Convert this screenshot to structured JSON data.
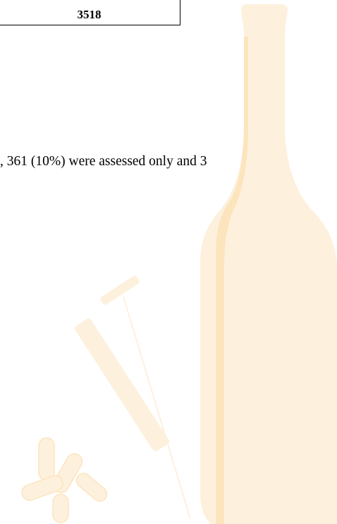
{
  "table": {
    "rows": [
      [
        "3518"
      ]
    ]
  },
  "paragraph": {
    "text": ", 361 (10%) were assessed only and 3"
  }
}
